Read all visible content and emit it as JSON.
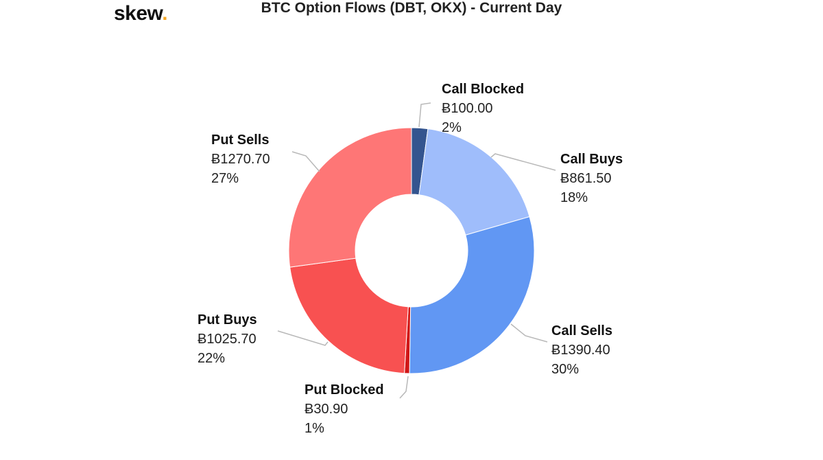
{
  "brand": {
    "logo_text": "skew",
    "logo_dot": ".",
    "logo_dot_color": "#f5a623"
  },
  "chart_data": {
    "type": "pie",
    "variant": "donut",
    "title": "BTC Option Flows (DBT, OKX) - Current Day",
    "currency_symbol": "Ƀ",
    "slices": [
      {
        "label": "Call Blocked",
        "value": 100.0,
        "value_text": "Ƀ100.00",
        "percent_text": "2%",
        "color": "#34558f"
      },
      {
        "label": "Call Buys",
        "value": 861.5,
        "value_text": "Ƀ861.50",
        "percent_text": "18%",
        "color": "#9fbdfb"
      },
      {
        "label": "Call Sells",
        "value": 1390.4,
        "value_text": "Ƀ1390.40",
        "percent_text": "30%",
        "color": "#6197f3"
      },
      {
        "label": "Put Blocked",
        "value": 30.9,
        "value_text": "Ƀ30.90",
        "percent_text": "1%",
        "color": "#d01717"
      },
      {
        "label": "Put Buys",
        "value": 1025.7,
        "value_text": "Ƀ1025.70",
        "percent_text": "22%",
        "color": "#f85151"
      },
      {
        "label": "Put Sells",
        "value": 1270.7,
        "value_text": "Ƀ1270.70",
        "percent_text": "27%",
        "color": "#fe7676"
      }
    ],
    "legend": "none (callout labels)"
  }
}
